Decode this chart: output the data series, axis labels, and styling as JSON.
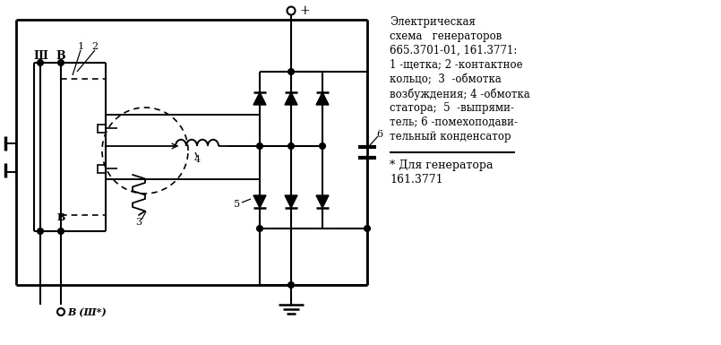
{
  "bg_color": "#ffffff",
  "line_color": "#000000",
  "fig_width": 8.05,
  "fig_height": 3.85,
  "title_lines": [
    "Электрическая",
    "схема   генераторов",
    "665.3701-01, 161.3771:",
    "1 -щетка; 2 -контактное",
    "кольцо;  3  -обмотка",
    "возбуждения; 4 -обмотка",
    "статора;  5  -выпрями-",
    "тель; 6 -помехоподави-",
    "тельный конденсатор"
  ],
  "footnote_lines": [
    "* Для генератора",
    "161.3771"
  ]
}
